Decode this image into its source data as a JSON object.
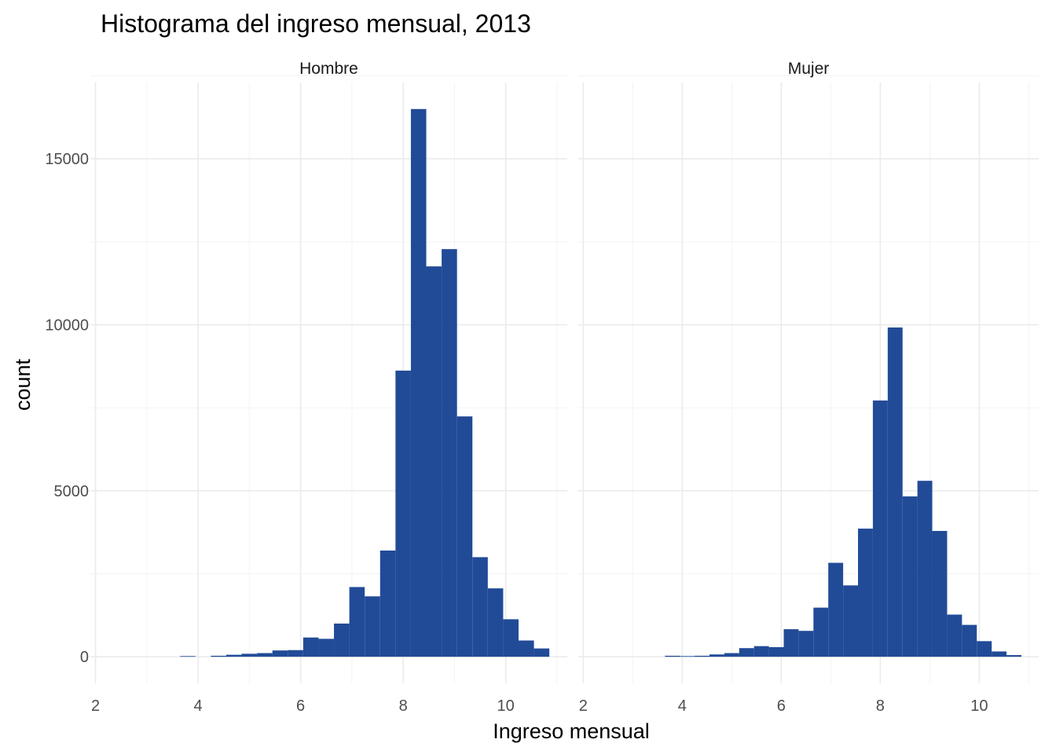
{
  "chart_data": {
    "type": "bar",
    "subtype": "histogram-faceted",
    "title": "Histograma del ingreso mensual, 2013",
    "xlabel": "Ingreso mensual",
    "ylabel": "count",
    "xlim": [
      1.9,
      11.2
    ],
    "ylim": [
      -800,
      17300
    ],
    "x_ticks": [
      2,
      4,
      6,
      8,
      10
    ],
    "y_ticks": [
      0,
      5000,
      10000,
      15000
    ],
    "grid": true,
    "bar_color": "#214b97",
    "bin_width": 0.3,
    "bin_centers": [
      3.8,
      4.1,
      4.4,
      4.7,
      5.0,
      5.3,
      5.6,
      5.9,
      6.2,
      6.5,
      6.8,
      7.1,
      7.4,
      7.7,
      8.0,
      8.3,
      8.6,
      8.9,
      9.2,
      9.5,
      9.8,
      10.1,
      10.4,
      10.7
    ],
    "panels": [
      {
        "name": "Hombre",
        "values": [
          20,
          0,
          30,
          60,
          90,
          110,
          190,
          200,
          580,
          540,
          1000,
          2100,
          1820,
          3200,
          8620,
          16500,
          11760,
          12280,
          7240,
          3000,
          2060,
          1130,
          490,
          250
        ]
      },
      {
        "name": "Mujer",
        "values": [
          30,
          20,
          30,
          70,
          110,
          260,
          320,
          290,
          830,
          780,
          1480,
          2830,
          2150,
          3860,
          7720,
          9920,
          4830,
          5300,
          3790,
          1270,
          960,
          470,
          160,
          50
        ]
      }
    ]
  }
}
